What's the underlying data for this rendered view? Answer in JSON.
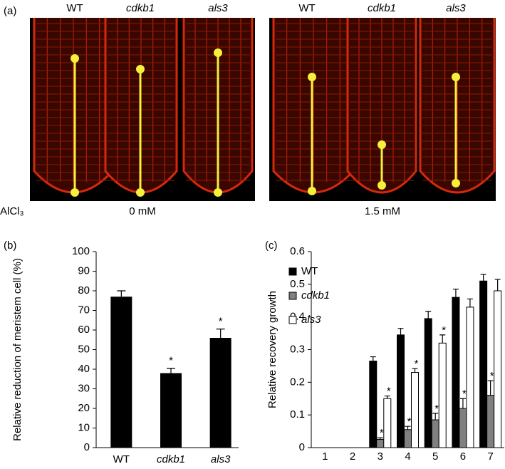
{
  "panel_a": {
    "label": "(a)",
    "genotypes": [
      "WT",
      "cdkb1",
      "als3",
      "WT",
      "cdkb1",
      "als3"
    ],
    "treatment_label": "AlCl₃",
    "conditions": [
      "0 mM",
      "1.5 mM"
    ]
  },
  "chart_data": [
    {
      "type": "bar",
      "panel_label": "(b)",
      "y_label": "Relative reduction of  meristem cell  (%)",
      "categories": [
        "WT",
        "cdkb1",
        "als3"
      ],
      "values": [
        77,
        38,
        56
      ],
      "errors": [
        3,
        2.5,
        4.5
      ],
      "significance": [
        null,
        "*",
        "*"
      ],
      "color": "#000000",
      "ylim": [
        0,
        100
      ],
      "yticks": [
        0,
        10,
        20,
        30,
        40,
        50,
        60,
        70,
        80,
        90,
        100
      ]
    },
    {
      "type": "grouped_bar",
      "panel_label": "(c)",
      "y_label": "Relative recovery growth",
      "categories": [
        "1",
        "2",
        "3",
        "4",
        "5",
        "6",
        "7"
      ],
      "series": [
        {
          "name": "WT",
          "color": "#000000",
          "values": [
            null,
            null,
            0.265,
            0.345,
            0.395,
            0.46,
            0.51
          ],
          "errors": [
            null,
            null,
            0.013,
            0.02,
            0.022,
            0.025,
            0.02
          ],
          "significance": [
            null,
            null,
            null,
            null,
            null,
            null,
            null
          ]
        },
        {
          "name": "cdkb1",
          "color": "#808080",
          "values": [
            null,
            null,
            0.025,
            0.055,
            0.085,
            0.12,
            0.16
          ],
          "errors": [
            null,
            null,
            0.005,
            0.01,
            0.02,
            0.03,
            0.045
          ],
          "significance": [
            null,
            null,
            "*",
            "*",
            "*",
            "*",
            "*"
          ]
        },
        {
          "name": "als3",
          "color": "#ffffff",
          "values": [
            null,
            null,
            0.15,
            0.23,
            0.32,
            0.43,
            0.48
          ],
          "errors": [
            null,
            null,
            0.008,
            0.012,
            0.025,
            0.025,
            0.035
          ],
          "significance": [
            null,
            null,
            "*",
            "*",
            "*",
            null,
            null
          ]
        }
      ],
      "legend": "upper left",
      "ylim": [
        0,
        0.6
      ],
      "yticks": [
        0,
        0.1,
        0.2,
        0.3,
        0.4,
        0.5,
        0.6
      ]
    }
  ]
}
